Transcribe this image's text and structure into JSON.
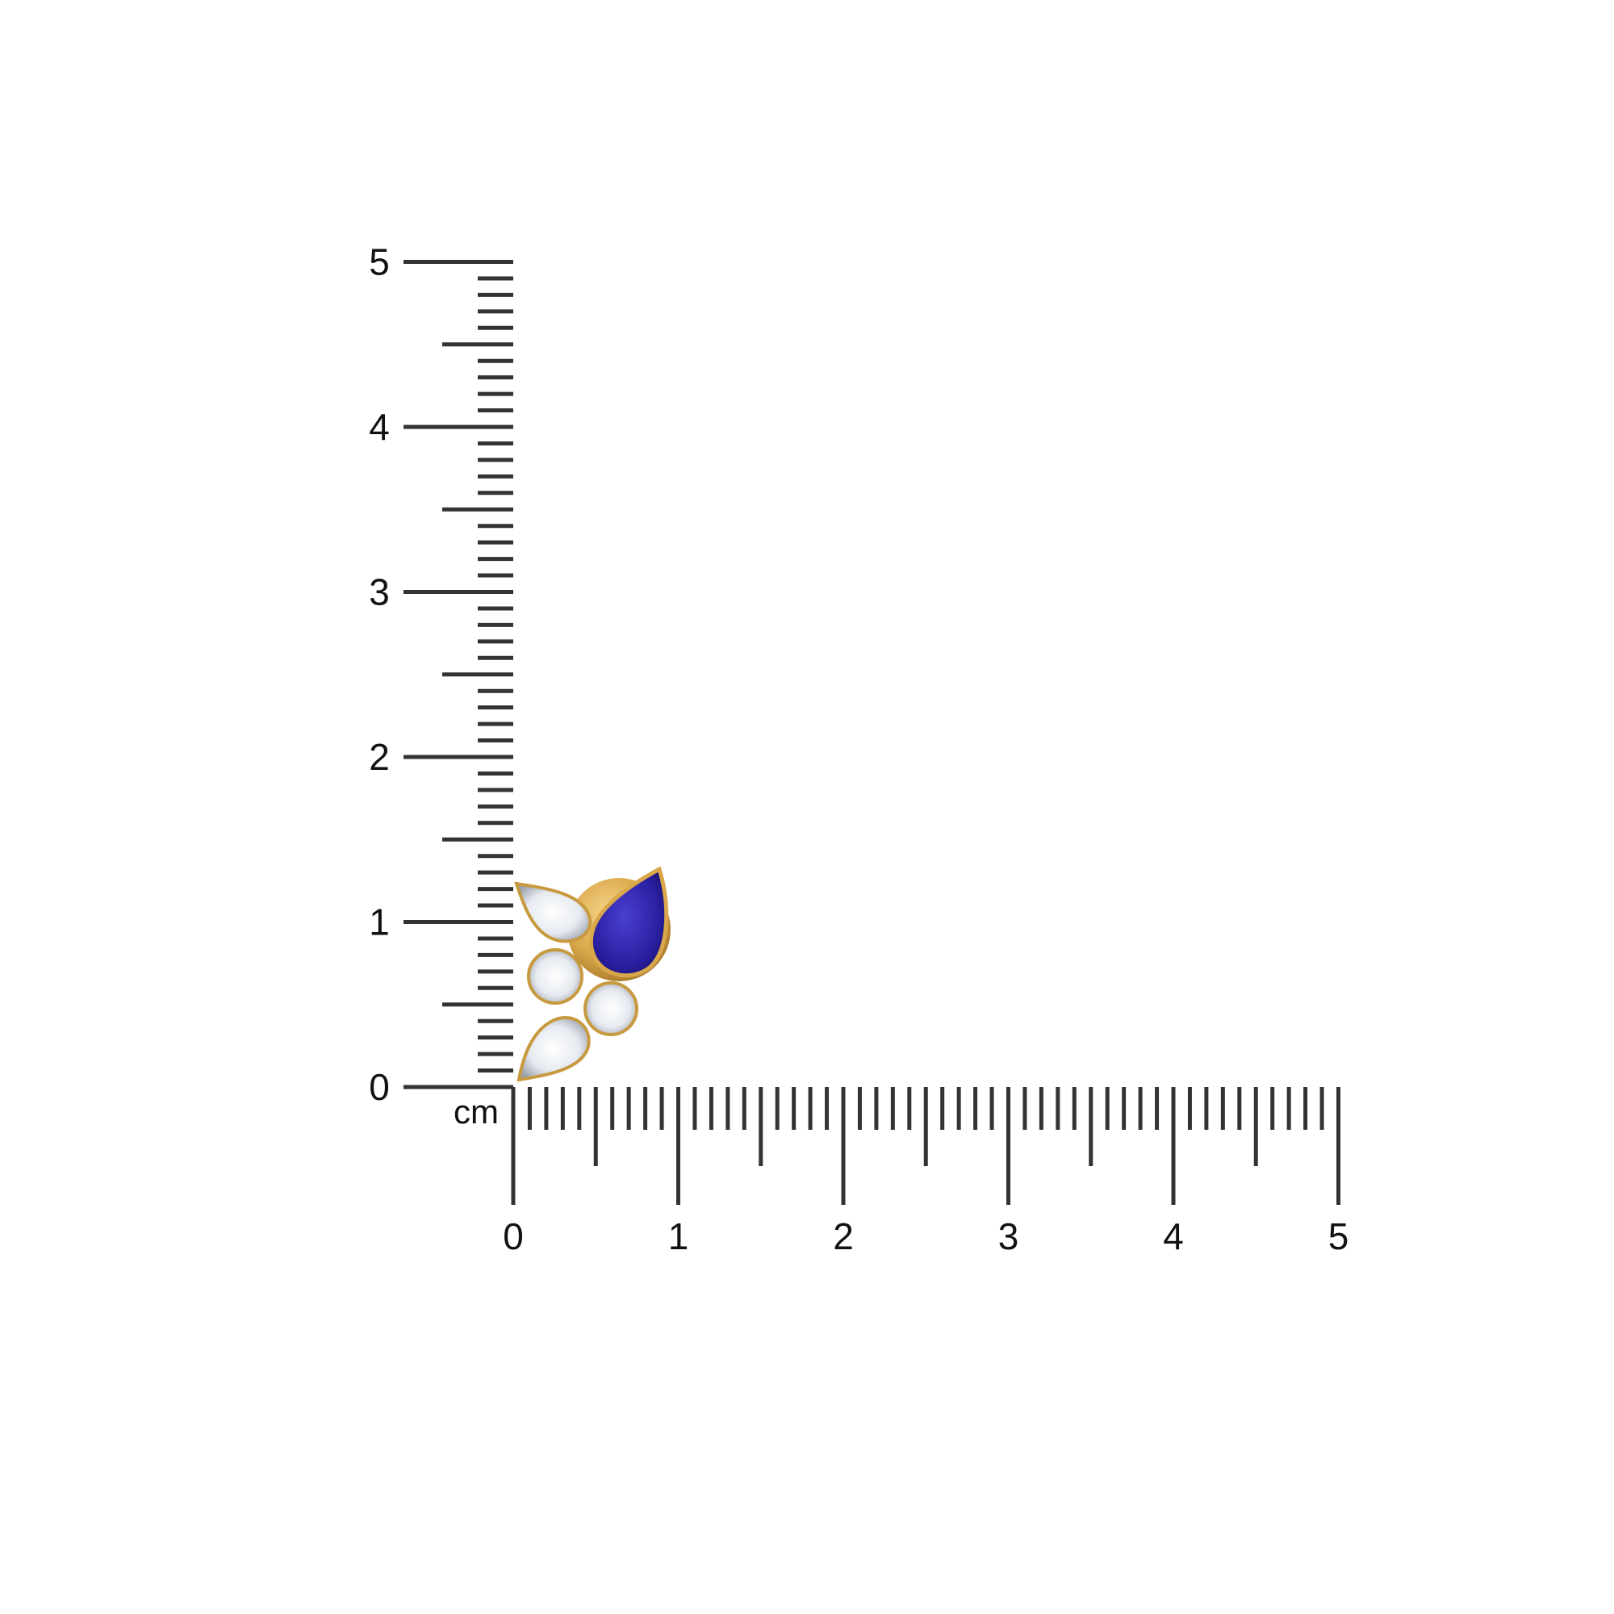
{
  "ruler": {
    "unit": "cm",
    "vertical_labels": [
      "0",
      "1",
      "2",
      "3",
      "4",
      "5"
    ],
    "horizontal_labels": [
      "0",
      "1",
      "2",
      "3",
      "4",
      "5"
    ],
    "tick_color": "#333333"
  },
  "product": {
    "metal_color": "#d9a84a",
    "center_stone_color": "#2a1fa0",
    "side_stone_color": "#e8ecf2"
  }
}
